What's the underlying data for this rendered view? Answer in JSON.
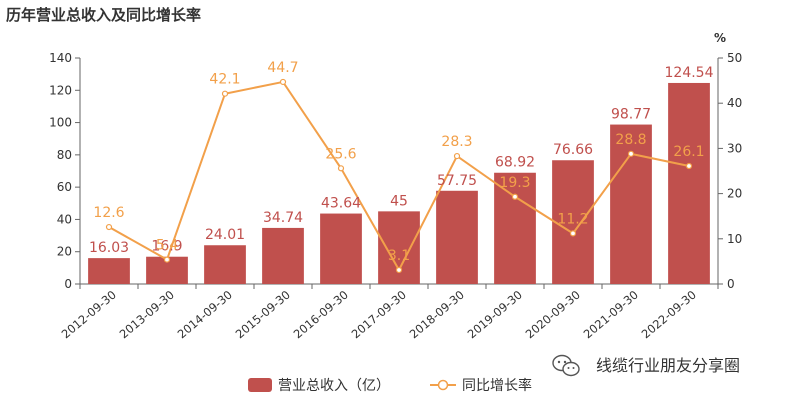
{
  "chart_data": {
    "type": "bar+line",
    "title": "历年营业总收入及同比增长率",
    "categories": [
      "2012-09-30",
      "2013-09-30",
      "2014-09-30",
      "2015-09-30",
      "2016-09-30",
      "2017-09-30",
      "2018-09-30",
      "2019-09-30",
      "2020-09-30",
      "2021-09-30",
      "2022-09-30"
    ],
    "series": [
      {
        "name": "营业总收入（亿）",
        "type": "bar",
        "axis": "left",
        "color": "#c0504d",
        "values": [
          16.03,
          16.9,
          24.01,
          34.74,
          43.64,
          45,
          57.75,
          68.92,
          76.66,
          98.77,
          124.54
        ],
        "labels": [
          "16.03",
          "16.9",
          "24.01",
          "34.74",
          "43.64",
          "45",
          "57.75",
          "68.92",
          "76.66",
          "98.77",
          "124.54"
        ]
      },
      {
        "name": "同比增长率",
        "type": "line",
        "axis": "right",
        "color": "#f2a04a",
        "values": [
          12.6,
          5.4,
          42.1,
          44.7,
          25.6,
          3.1,
          28.3,
          19.3,
          11.2,
          28.8,
          26.1
        ],
        "labels": [
          "12.6",
          "5.4",
          "42.1",
          "44.7",
          "25.6",
          "3.1",
          "28.3",
          "19.3",
          "11.2",
          "28.8",
          "26.1"
        ]
      }
    ],
    "yleft": {
      "min": 0,
      "max": 140,
      "ticks": [
        0,
        20,
        40,
        60,
        80,
        100,
        120,
        140
      ]
    },
    "yright": {
      "min": 0,
      "max": 50,
      "ticks": [
        0,
        10,
        20,
        30,
        40,
        50
      ],
      "unit": "%"
    },
    "legend": "bottom-center",
    "grid": false
  },
  "watermark": "线缆行业朋友分享圈"
}
